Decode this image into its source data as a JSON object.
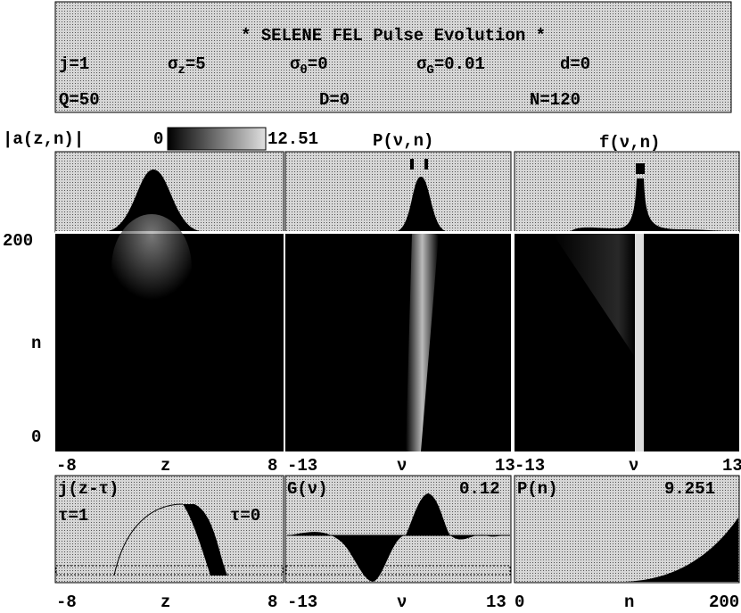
{
  "header": {
    "title": "* SELENE FEL Pulse Evolution *",
    "params": [
      {
        "base": "j=1"
      },
      {
        "base": "σ",
        "sub": "z",
        "rest": "=5"
      },
      {
        "base": "σ",
        "sub": "θ",
        "rest": "=0"
      },
      {
        "base": "σ",
        "sub": "G",
        "rest": "=0.01"
      },
      {
        "base": "d=0"
      },
      {
        "base": "Q=50"
      },
      {
        "base": "D=0"
      },
      {
        "base": "N=120"
      }
    ]
  },
  "colorbar": {
    "label": "|a(z,n)|",
    "min": "0",
    "max": "12.51"
  },
  "panels": {
    "titles": [
      "P(ν,n)",
      "f(ν,n)"
    ],
    "n_axis": {
      "label": "n",
      "top": "200",
      "bottom": "0"
    },
    "x_axes": [
      [
        "-8",
        "z",
        "8"
      ],
      [
        "-13",
        "ν",
        "13"
      ],
      [
        "-13",
        "ν",
        "13"
      ]
    ]
  },
  "bottom": {
    "labels": [
      [
        "j(z-τ)",
        "τ=1",
        "τ=0"
      ],
      [
        "G(ν)",
        "0.12"
      ],
      [
        "P(n)",
        "9.251"
      ]
    ],
    "x_axes": [
      [
        "-8",
        "z",
        "8"
      ],
      [
        "-13",
        "ν",
        "13"
      ],
      [
        "0",
        "n",
        "200"
      ]
    ]
  }
}
